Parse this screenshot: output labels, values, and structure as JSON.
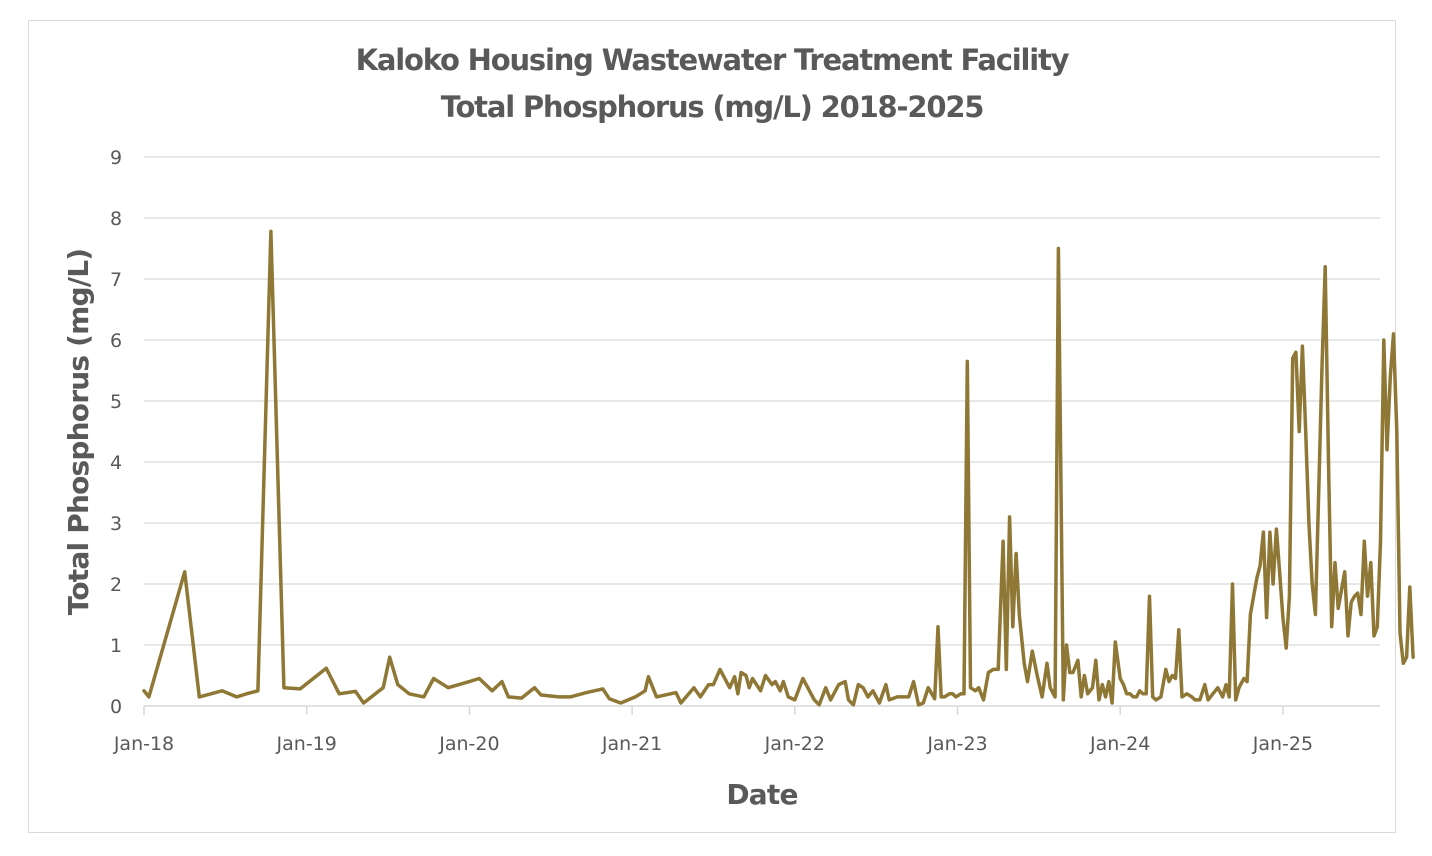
{
  "chart_data": {
    "type": "line",
    "title": [
      "Kaloko Housing Wastewater Treatment Facility",
      "Total Phosphorus (mg/L) 2018-2025"
    ],
    "xlabel": "Date",
    "ylabel": "Total Phosphorus (mg/L)",
    "ylim": [
      0,
      9
    ],
    "yticks": [
      "0",
      "1",
      "2",
      "3",
      "4",
      "5",
      "6",
      "7",
      "8",
      "9"
    ],
    "xlim_years": [
      2018.0,
      2025.65
    ],
    "xticks": [
      {
        "label": "Jan-18",
        "year": 2018
      },
      {
        "label": "Jan-19",
        "year": 2019
      },
      {
        "label": "Jan-20",
        "year": 2020
      },
      {
        "label": "Jan-21",
        "year": 2021
      },
      {
        "label": "Jan-22",
        "year": 2022
      },
      {
        "label": "Jan-23",
        "year": 2023
      },
      {
        "label": "Jan-24",
        "year": 2024
      },
      {
        "label": "Jan-25",
        "year": 2025
      }
    ],
    "grid": true,
    "legend": "none",
    "series": [
      {
        "name": "Total Phosphorus",
        "color": "#8f7735",
        "points": [
          [
            2018.0,
            0.25
          ],
          [
            2018.03,
            0.15
          ],
          [
            2018.25,
            2.2
          ],
          [
            2018.34,
            0.15
          ],
          [
            2018.48,
            0.25
          ],
          [
            2018.57,
            0.15
          ],
          [
            2018.63,
            0.2
          ],
          [
            2018.7,
            0.25
          ],
          [
            2018.78,
            7.78
          ],
          [
            2018.86,
            0.3
          ],
          [
            2018.96,
            0.28
          ],
          [
            2019.12,
            0.62
          ],
          [
            2019.2,
            0.2
          ],
          [
            2019.3,
            0.24
          ],
          [
            2019.35,
            0.05
          ],
          [
            2019.47,
            0.3
          ],
          [
            2019.51,
            0.8
          ],
          [
            2019.56,
            0.35
          ],
          [
            2019.63,
            0.2
          ],
          [
            2019.72,
            0.15
          ],
          [
            2019.78,
            0.45
          ],
          [
            2019.87,
            0.3
          ],
          [
            2020.0,
            0.4
          ],
          [
            2020.06,
            0.45
          ],
          [
            2020.14,
            0.25
          ],
          [
            2020.2,
            0.4
          ],
          [
            2020.24,
            0.15
          ],
          [
            2020.32,
            0.13
          ],
          [
            2020.4,
            0.3
          ],
          [
            2020.44,
            0.18
          ],
          [
            2020.55,
            0.15
          ],
          [
            2020.62,
            0.15
          ],
          [
            2020.72,
            0.22
          ],
          [
            2020.82,
            0.28
          ],
          [
            2020.86,
            0.12
          ],
          [
            2020.93,
            0.05
          ],
          [
            2021.02,
            0.15
          ],
          [
            2021.08,
            0.25
          ],
          [
            2021.1,
            0.48
          ],
          [
            2021.15,
            0.15
          ],
          [
            2021.27,
            0.22
          ],
          [
            2021.3,
            0.05
          ],
          [
            2021.38,
            0.3
          ],
          [
            2021.42,
            0.15
          ],
          [
            2021.47,
            0.35
          ],
          [
            2021.5,
            0.35
          ],
          [
            2021.54,
            0.6
          ],
          [
            2021.6,
            0.3
          ],
          [
            2021.63,
            0.48
          ],
          [
            2021.65,
            0.2
          ],
          [
            2021.67,
            0.55
          ],
          [
            2021.7,
            0.5
          ],
          [
            2021.72,
            0.3
          ],
          [
            2021.74,
            0.45
          ],
          [
            2021.79,
            0.25
          ],
          [
            2021.82,
            0.5
          ],
          [
            2021.86,
            0.35
          ],
          [
            2021.88,
            0.4
          ],
          [
            2021.91,
            0.25
          ],
          [
            2021.93,
            0.4
          ],
          [
            2021.96,
            0.15
          ],
          [
            2022.0,
            0.1
          ],
          [
            2022.05,
            0.45
          ],
          [
            2022.12,
            0.1
          ],
          [
            2022.15,
            0.02
          ],
          [
            2022.19,
            0.3
          ],
          [
            2022.22,
            0.1
          ],
          [
            2022.27,
            0.35
          ],
          [
            2022.31,
            0.4
          ],
          [
            2022.33,
            0.1
          ],
          [
            2022.36,
            0.02
          ],
          [
            2022.39,
            0.35
          ],
          [
            2022.42,
            0.3
          ],
          [
            2022.45,
            0.15
          ],
          [
            2022.48,
            0.25
          ],
          [
            2022.52,
            0.05
          ],
          [
            2022.56,
            0.35
          ],
          [
            2022.58,
            0.1
          ],
          [
            2022.63,
            0.15
          ],
          [
            2022.7,
            0.15
          ],
          [
            2022.73,
            0.4
          ],
          [
            2022.76,
            0.02
          ],
          [
            2022.79,
            0.05
          ],
          [
            2022.82,
            0.3
          ],
          [
            2022.86,
            0.12
          ],
          [
            2022.88,
            1.3
          ],
          [
            2022.9,
            0.15
          ],
          [
            2022.92,
            0.15
          ],
          [
            2022.95,
            0.2
          ],
          [
            2022.97,
            0.2
          ],
          [
            2022.99,
            0.15
          ],
          [
            2023.02,
            0.2
          ],
          [
            2023.04,
            0.2
          ],
          [
            2023.06,
            5.65
          ],
          [
            2023.08,
            0.3
          ],
          [
            2023.11,
            0.25
          ],
          [
            2023.13,
            0.3
          ],
          [
            2023.16,
            0.1
          ],
          [
            2023.19,
            0.55
          ],
          [
            2023.22,
            0.6
          ],
          [
            2023.25,
            0.6
          ],
          [
            2023.28,
            2.7
          ],
          [
            2023.3,
            0.6
          ],
          [
            2023.32,
            3.1
          ],
          [
            2023.34,
            1.3
          ],
          [
            2023.36,
            2.5
          ],
          [
            2023.38,
            1.5
          ],
          [
            2023.41,
            0.7
          ],
          [
            2023.43,
            0.4
          ],
          [
            2023.46,
            0.9
          ],
          [
            2023.49,
            0.5
          ],
          [
            2023.52,
            0.15
          ],
          [
            2023.55,
            0.7
          ],
          [
            2023.57,
            0.3
          ],
          [
            2023.6,
            0.15
          ],
          [
            2023.62,
            7.5
          ],
          [
            2023.65,
            0.1
          ],
          [
            2023.67,
            1.0
          ],
          [
            2023.69,
            0.55
          ],
          [
            2023.71,
            0.55
          ],
          [
            2023.74,
            0.75
          ],
          [
            2023.76,
            0.15
          ],
          [
            2023.78,
            0.5
          ],
          [
            2023.8,
            0.2
          ],
          [
            2023.83,
            0.3
          ],
          [
            2023.85,
            0.75
          ],
          [
            2023.87,
            0.1
          ],
          [
            2023.89,
            0.35
          ],
          [
            2023.91,
            0.15
          ],
          [
            2023.93,
            0.4
          ],
          [
            2023.95,
            0.05
          ],
          [
            2023.97,
            1.05
          ],
          [
            2024.0,
            0.45
          ],
          [
            2024.02,
            0.35
          ],
          [
            2024.04,
            0.2
          ],
          [
            2024.06,
            0.2
          ],
          [
            2024.08,
            0.15
          ],
          [
            2024.1,
            0.15
          ],
          [
            2024.12,
            0.25
          ],
          [
            2024.14,
            0.2
          ],
          [
            2024.16,
            0.2
          ],
          [
            2024.18,
            1.8
          ],
          [
            2024.2,
            0.15
          ],
          [
            2024.22,
            0.1
          ],
          [
            2024.25,
            0.15
          ],
          [
            2024.28,
            0.6
          ],
          [
            2024.3,
            0.4
          ],
          [
            2024.32,
            0.5
          ],
          [
            2024.34,
            0.45
          ],
          [
            2024.36,
            1.25
          ],
          [
            2024.38,
            0.15
          ],
          [
            2024.41,
            0.2
          ],
          [
            2024.44,
            0.15
          ],
          [
            2024.46,
            0.1
          ],
          [
            2024.49,
            0.1
          ],
          [
            2024.52,
            0.35
          ],
          [
            2024.54,
            0.1
          ],
          [
            2024.57,
            0.2
          ],
          [
            2024.6,
            0.3
          ],
          [
            2024.63,
            0.15
          ],
          [
            2024.65,
            0.35
          ],
          [
            2024.67,
            0.15
          ],
          [
            2024.69,
            2.0
          ],
          [
            2024.71,
            0.1
          ],
          [
            2024.73,
            0.3
          ],
          [
            2024.76,
            0.45
          ],
          [
            2024.78,
            0.4
          ],
          [
            2024.8,
            1.5
          ],
          [
            2024.82,
            1.8
          ],
          [
            2024.84,
            2.1
          ],
          [
            2024.86,
            2.3
          ],
          [
            2024.88,
            2.85
          ],
          [
            2024.9,
            1.45
          ],
          [
            2024.92,
            2.85
          ],
          [
            2024.94,
            2.0
          ],
          [
            2024.96,
            2.9
          ],
          [
            2024.98,
            2.2
          ],
          [
            2025.0,
            1.45
          ],
          [
            2025.02,
            0.95
          ],
          [
            2025.04,
            1.8
          ],
          [
            2025.06,
            5.7
          ],
          [
            2025.08,
            5.8
          ],
          [
            2025.1,
            4.5
          ],
          [
            2025.12,
            5.9
          ],
          [
            2025.14,
            4.5
          ],
          [
            2025.16,
            3.0
          ],
          [
            2025.18,
            2.0
          ],
          [
            2025.2,
            1.5
          ],
          [
            2025.22,
            3.5
          ],
          [
            2025.24,
            5.5
          ],
          [
            2025.26,
            7.2
          ],
          [
            2025.28,
            4.0
          ],
          [
            2025.3,
            1.3
          ],
          [
            2025.32,
            2.35
          ],
          [
            2025.34,
            1.6
          ],
          [
            2025.36,
            1.9
          ],
          [
            2025.38,
            2.2
          ],
          [
            2025.4,
            1.15
          ],
          [
            2025.42,
            1.7
          ],
          [
            2025.44,
            1.8
          ],
          [
            2025.46,
            1.85
          ],
          [
            2025.48,
            1.5
          ],
          [
            2025.5,
            2.7
          ],
          [
            2025.52,
            1.8
          ],
          [
            2025.54,
            2.35
          ],
          [
            2025.56,
            1.15
          ],
          [
            2025.58,
            1.3
          ],
          [
            2025.6,
            2.7
          ],
          [
            2025.62,
            6.0
          ],
          [
            2025.64,
            4.2
          ],
          [
            2025.66,
            5.4
          ],
          [
            2025.68,
            6.1
          ],
          [
            2025.7,
            4.5
          ],
          [
            2025.72,
            1.2
          ],
          [
            2025.74,
            0.7
          ],
          [
            2025.76,
            0.8
          ],
          [
            2025.78,
            1.95
          ],
          [
            2025.8,
            0.8
          ]
        ]
      }
    ]
  }
}
